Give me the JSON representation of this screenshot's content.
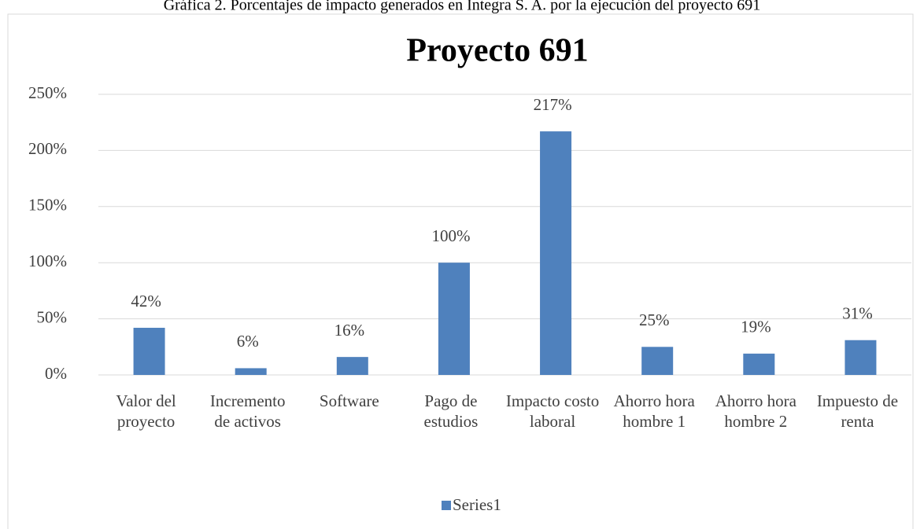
{
  "caption": "Gráfica 2. Porcentajes de impacto generados en Integra S. A. por la ejecución del proyecto 691",
  "chart_data": {
    "type": "bar",
    "title": "Proyecto 691",
    "categories": [
      "Valor del proyecto",
      "Incremento de activos",
      "Software",
      "Pago de estudios",
      "Impacto costo laboral",
      "Ahorro hora hombre 1",
      "Ahorro hora hombre 2",
      "Impuesto de renta"
    ],
    "series": [
      {
        "name": "Series1",
        "color": "#4f81bd",
        "values": [
          42,
          6,
          16,
          100,
          217,
          25,
          19,
          31
        ],
        "value_labels": [
          "42%",
          "6%",
          "16%",
          "100%",
          "217%",
          "25%",
          "19%",
          "31%"
        ]
      }
    ],
    "ylim": [
      0,
      250
    ],
    "yticks": [
      {
        "value": 0,
        "label": "0%"
      },
      {
        "value": 50,
        "label": "50%"
      },
      {
        "value": 100,
        "label": "100%"
      },
      {
        "value": 150,
        "label": "150%"
      },
      {
        "value": 200,
        "label": "200%"
      },
      {
        "value": 250,
        "label": "250%"
      }
    ],
    "grid": true,
    "legend": "bottom"
  }
}
